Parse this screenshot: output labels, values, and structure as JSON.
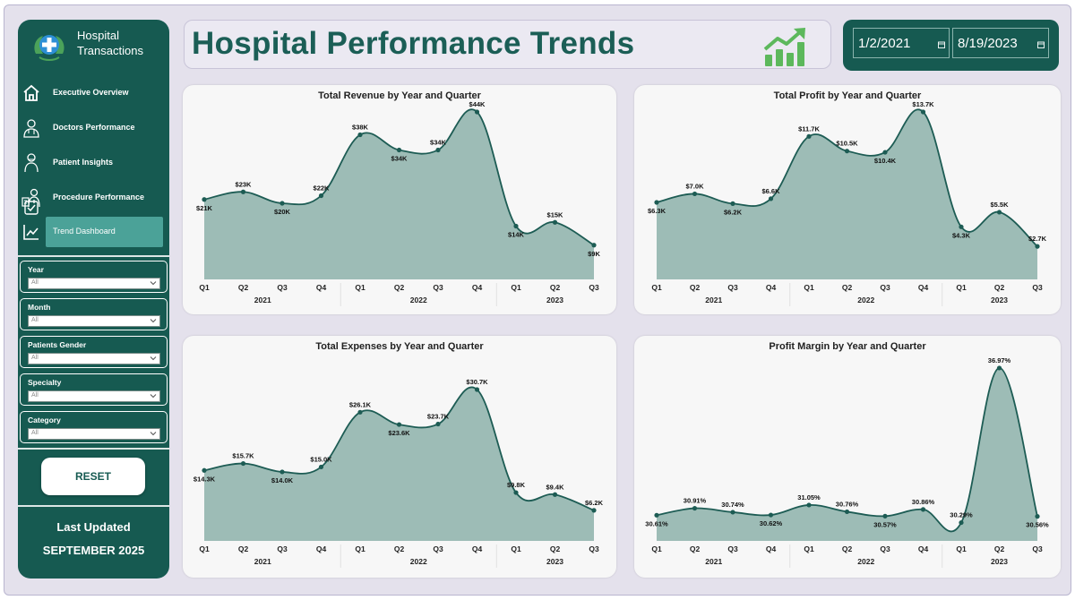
{
  "sidebar": {
    "brand_line1": "Hospital",
    "brand_line2": "Transactions",
    "nav": [
      {
        "label": "Executive Overview",
        "icon": "home-icon"
      },
      {
        "label": "Doctors Performance",
        "icon": "doctor-icon"
      },
      {
        "label": "Patient Insights",
        "icon": "patient-icon"
      },
      {
        "label": "Procedure Performance",
        "icon": "procedure-icon"
      },
      {
        "label": "Trend Dashboard",
        "icon": "chart-icon",
        "active": true
      }
    ],
    "filters": [
      {
        "label": "Year",
        "value": "All"
      },
      {
        "label": "Month",
        "value": "All"
      },
      {
        "label": "Patients Gender",
        "value": "All"
      },
      {
        "label": "Specialty",
        "value": "All"
      },
      {
        "label": "Category",
        "value": "All"
      }
    ],
    "reset_label": "RESET",
    "last_updated_label": "Last Updated",
    "last_updated_value": "SEPTEMBER 2025"
  },
  "header": {
    "title": "Hospital Performance Trends",
    "start_date": "1/2/2021",
    "end_date": "8/19/2023"
  },
  "colors": {
    "primary": "#165a51",
    "accent": "#4ba298",
    "area_fill": "#9dbcb6",
    "line": "#1d5c54",
    "icon_green": "#5cb85c"
  },
  "chart_data": [
    {
      "type": "area",
      "title": "Total Revenue by Year and Quarter",
      "quarters": [
        "Q1",
        "Q2",
        "Q3",
        "Q4",
        "Q1",
        "Q2",
        "Q3",
        "Q4",
        "Q1",
        "Q2",
        "Q3"
      ],
      "years": [
        {
          "label": "2021",
          "span": 4
        },
        {
          "label": "2022",
          "span": 4
        },
        {
          "label": "2023",
          "span": 3
        }
      ],
      "values": [
        21,
        23,
        20,
        22,
        38,
        34,
        34,
        44,
        14,
        15,
        9
      ],
      "labels": [
        "$21K",
        "$23K",
        "$20K",
        "$22K",
        "$38K",
        "$34K",
        "$34K",
        "$44K",
        "$14K",
        "$15K",
        "$9K"
      ],
      "label_pos": [
        "below",
        "above",
        "below",
        "above",
        "above",
        "below",
        "above",
        "above",
        "below",
        "above",
        "below"
      ]
    },
    {
      "type": "area",
      "title": "Total Profit by Year and Quarter",
      "quarters": [
        "Q1",
        "Q2",
        "Q3",
        "Q4",
        "Q1",
        "Q2",
        "Q3",
        "Q4",
        "Q1",
        "Q2",
        "Q3"
      ],
      "years": [
        {
          "label": "2021",
          "span": 4
        },
        {
          "label": "2022",
          "span": 4
        },
        {
          "label": "2023",
          "span": 3
        }
      ],
      "values": [
        6.3,
        7.0,
        6.2,
        6.6,
        11.7,
        10.5,
        10.4,
        13.7,
        4.3,
        5.5,
        2.7
      ],
      "labels": [
        "$6.3K",
        "$7.0K",
        "$6.2K",
        "$6.6K",
        "$11.7K",
        "$10.5K",
        "$10.4K",
        "$13.7K",
        "$4.3K",
        "$5.5K",
        "$2.7K"
      ],
      "label_pos": [
        "below",
        "above",
        "below",
        "above",
        "above",
        "above",
        "below",
        "above",
        "below",
        "above",
        "above"
      ]
    },
    {
      "type": "area",
      "title": "Total Expenses by Year and Quarter",
      "quarters": [
        "Q1",
        "Q2",
        "Q3",
        "Q4",
        "Q1",
        "Q2",
        "Q3",
        "Q4",
        "Q1",
        "Q2",
        "Q3"
      ],
      "years": [
        {
          "label": "2021",
          "span": 4
        },
        {
          "label": "2022",
          "span": 4
        },
        {
          "label": "2023",
          "span": 3
        }
      ],
      "values": [
        14.3,
        15.7,
        14.0,
        15.0,
        26.1,
        23.6,
        23.7,
        30.7,
        9.8,
        9.4,
        6.2
      ],
      "labels": [
        "$14.3K",
        "$15.7K",
        "$14.0K",
        "$15.0K",
        "$26.1K",
        "$23.6K",
        "$23.7K",
        "$30.7K",
        "$9.8K",
        "$9.4K",
        "$6.2K"
      ],
      "label_pos": [
        "below",
        "above",
        "below",
        "above",
        "above",
        "below",
        "above",
        "above",
        "above",
        "above",
        "above"
      ]
    },
    {
      "type": "area",
      "title": "Profit Margin by Year and Quarter",
      "quarters": [
        "Q1",
        "Q2",
        "Q3",
        "Q4",
        "Q1",
        "Q2",
        "Q3",
        "Q4",
        "Q1",
        "Q2",
        "Q3"
      ],
      "years": [
        {
          "label": "2021",
          "span": 4
        },
        {
          "label": "2022",
          "span": 4
        },
        {
          "label": "2023",
          "span": 3
        }
      ],
      "values": [
        30.61,
        30.91,
        30.74,
        30.62,
        31.05,
        30.76,
        30.57,
        30.86,
        30.29,
        36.97,
        30.56
      ],
      "labels": [
        "30.61%",
        "30.91%",
        "30.74%",
        "30.62%",
        "31.05%",
        "30.76%",
        "30.57%",
        "30.86%",
        "30.29%",
        "36.97%",
        "30.56%"
      ],
      "label_pos": [
        "below",
        "above",
        "above",
        "below",
        "above",
        "above",
        "below",
        "above",
        "above",
        "above",
        "below"
      ],
      "ylim": [
        29.5,
        37.2
      ]
    }
  ]
}
